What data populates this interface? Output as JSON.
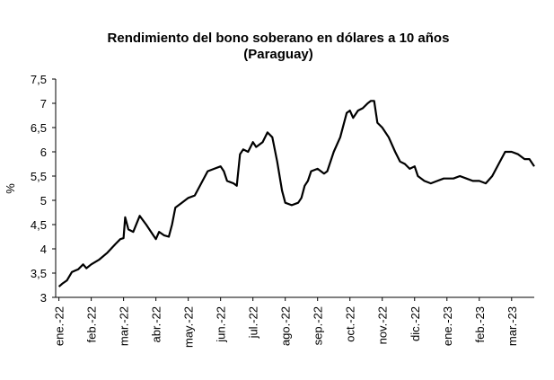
{
  "chart_data": {
    "type": "line",
    "title": "Rendimiento del bono soberano en dólares a 10 años",
    "subtitle": "(Paraguay)",
    "y_label": "%",
    "x": [
      0,
      0.1,
      0.25,
      0.4,
      0.5,
      0.6,
      0.75,
      0.85,
      1.0,
      1.25,
      1.5,
      1.75,
      1.9,
      2.0,
      2.05,
      2.15,
      2.3,
      2.5,
      2.7,
      2.85,
      3.0,
      3.1,
      3.25,
      3.4,
      3.5,
      3.6,
      3.8,
      4.0,
      4.2,
      4.4,
      4.6,
      4.8,
      5.0,
      5.1,
      5.2,
      5.4,
      5.5,
      5.6,
      5.7,
      5.85,
      6.0,
      6.1,
      6.3,
      6.45,
      6.6,
      6.75,
      6.9,
      7.0,
      7.2,
      7.4,
      7.5,
      7.6,
      7.7,
      7.8,
      8.0,
      8.2,
      8.3,
      8.5,
      8.7,
      8.9,
      9.0,
      9.1,
      9.25,
      9.4,
      9.55,
      9.65,
      9.75,
      9.85,
      10.0,
      10.2,
      10.4,
      10.55,
      10.7,
      10.85,
      11.0,
      11.1,
      11.3,
      11.5,
      11.7,
      11.9,
      12.0,
      12.2,
      12.4,
      12.6,
      12.8,
      13.0,
      13.2,
      13.4,
      13.6,
      13.8,
      14.0,
      14.2,
      14.4,
      14.55,
      14.7
    ],
    "series": [
      {
        "name": "Rendimiento",
        "color": "#000000",
        "values": [
          3.22,
          3.28,
          3.35,
          3.52,
          3.55,
          3.58,
          3.68,
          3.6,
          3.68,
          3.78,
          3.92,
          4.1,
          4.2,
          4.22,
          4.65,
          4.4,
          4.35,
          4.68,
          4.5,
          4.35,
          4.2,
          4.35,
          4.28,
          4.25,
          4.5,
          4.85,
          4.95,
          5.05,
          5.1,
          5.35,
          5.6,
          5.65,
          5.7,
          5.6,
          5.4,
          5.35,
          5.3,
          5.95,
          6.05,
          6.0,
          6.2,
          6.1,
          6.2,
          6.4,
          6.3,
          5.8,
          5.2,
          4.95,
          4.9,
          4.95,
          5.05,
          5.3,
          5.4,
          5.6,
          5.65,
          5.55,
          5.6,
          6.0,
          6.3,
          6.8,
          6.85,
          6.7,
          6.85,
          6.9,
          7.0,
          7.05,
          7.05,
          6.6,
          6.5,
          6.3,
          6.0,
          5.8,
          5.75,
          5.65,
          5.7,
          5.5,
          5.4,
          5.35,
          5.4,
          5.45,
          5.45,
          5.45,
          5.5,
          5.45,
          5.4,
          5.4,
          5.35,
          5.5,
          5.75,
          6.0,
          6.0,
          5.95,
          5.85,
          5.85,
          5.7
        ]
      }
    ],
    "xlim": [
      -0.1,
      14.7
    ],
    "xticks": [
      {
        "value": 0,
        "label": "ene.-22"
      },
      {
        "value": 1,
        "label": "feb.-22"
      },
      {
        "value": 2,
        "label": "mar.-22"
      },
      {
        "value": 3,
        "label": "abr.-22"
      },
      {
        "value": 4,
        "label": "may.-22"
      },
      {
        "value": 5,
        "label": "jun.-22"
      },
      {
        "value": 6,
        "label": "jul.-22"
      },
      {
        "value": 7,
        "label": "ago.-22"
      },
      {
        "value": 8,
        "label": "sep.-22"
      },
      {
        "value": 9,
        "label": "oct.-22"
      },
      {
        "value": 10,
        "label": "nov.-22"
      },
      {
        "value": 11,
        "label": "dic.-22"
      },
      {
        "value": 12,
        "label": "ene.-23"
      },
      {
        "value": 13,
        "label": "feb.-23"
      },
      {
        "value": 14,
        "label": "mar.-23"
      }
    ],
    "ylim": [
      3,
      7.5
    ],
    "yticks": [
      3,
      {
        "value": 3.5,
        "label": "3,5"
      },
      4,
      {
        "value": 4.5,
        "label": "4,5"
      },
      5,
      {
        "value": 5.5,
        "label": "5,5"
      },
      6,
      {
        "value": 6.5,
        "label": "6,5"
      },
      7,
      {
        "value": 7.5,
        "label": "7,5"
      }
    ]
  }
}
